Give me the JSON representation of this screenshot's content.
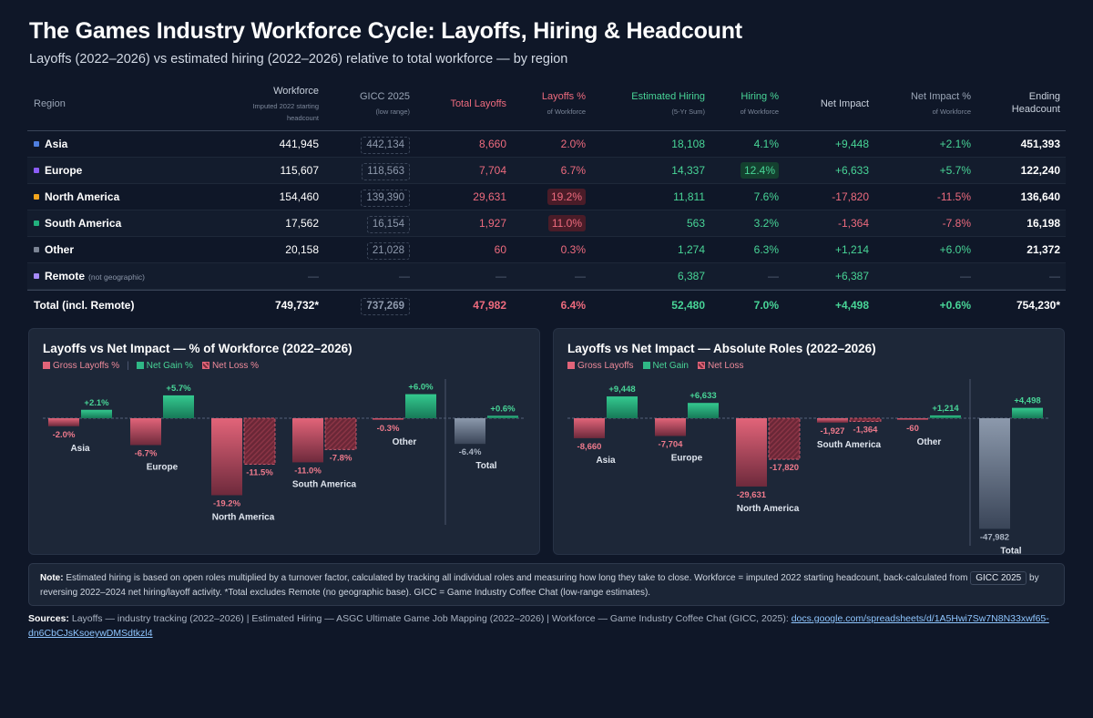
{
  "title": "The Games Industry Workforce Cycle: Layoffs, Hiring & Headcount",
  "subtitle": "Layoffs (2022–2026) vs estimated hiring (2022–2026) relative to total workforce — by region",
  "table": {
    "headers": {
      "region": "Region",
      "workforce": "Workforce",
      "workforce_sub": "Imputed 2022 starting headcount",
      "gicc": "GICC 2025",
      "gicc_sub": "(low range)",
      "layoffs": "Total Layoffs",
      "layoffs_pct": "Layoffs %",
      "layoffs_pct_sub": "of Workforce",
      "hiring": "Estimated Hiring",
      "hiring_sub": "(5-Yr Sum)",
      "hiring_pct": "Hiring %",
      "hiring_pct_sub": "of Workforce",
      "net": "Net Impact",
      "net_pct": "Net Impact %",
      "net_pct_sub": "of Workforce",
      "ending": "Ending Headcount"
    },
    "rows": [
      {
        "region": "Asia",
        "color": "#4f7fe0",
        "workforce": "441,945",
        "gicc": "442,134",
        "layoffs": "8,660",
        "layoffs_pct": "2.0%",
        "hiring": "18,108",
        "hiring_pct": "4.1%",
        "net": "+9,448",
        "net_pct": "+2.1%",
        "ending": "451,393"
      },
      {
        "region": "Europe",
        "color": "#8b5cf6",
        "workforce": "115,607",
        "gicc": "118,563",
        "layoffs": "7,704",
        "layoffs_pct": "6.7%",
        "hiring": "14,337",
        "hiring_pct": "12.4%",
        "net": "+6,633",
        "net_pct": "+5.7%",
        "ending": "122,240"
      },
      {
        "region": "North America",
        "color": "#f2a51d",
        "workforce": "154,460",
        "gicc": "139,390",
        "layoffs": "29,631",
        "layoffs_pct": "19.2%",
        "hiring": "11,811",
        "hiring_pct": "7.6%",
        "net": "-17,820",
        "net_pct": "-11.5%",
        "ending": "136,640"
      },
      {
        "region": "South America",
        "color": "#22b07d",
        "workforce": "17,562",
        "gicc": "16,154",
        "layoffs": "1,927",
        "layoffs_pct": "11.0%",
        "hiring": "563",
        "hiring_pct": "3.2%",
        "net": "-1,364",
        "net_pct": "-7.8%",
        "ending": "16,198"
      },
      {
        "region": "Other",
        "color": "#7b8494",
        "workforce": "20,158",
        "gicc": "21,028",
        "layoffs": "60",
        "layoffs_pct": "0.3%",
        "hiring": "1,274",
        "hiring_pct": "6.3%",
        "net": "+1,214",
        "net_pct": "+6.0%",
        "ending": "21,372"
      },
      {
        "region": "Remote",
        "note": "(not geographic)",
        "color": "#a78bfa",
        "workforce": "—",
        "gicc": "—",
        "layoffs": "—",
        "layoffs_pct": "—",
        "hiring": "6,387",
        "hiring_pct": "—",
        "net": "+6,387",
        "net_pct": "—",
        "ending": "—"
      }
    ],
    "total": {
      "region": "Total (incl. Remote)",
      "workforce": "749,732*",
      "gicc": "737,269",
      "layoffs": "47,982",
      "layoffs_pct": "6.4%",
      "hiring": "52,480",
      "hiring_pct": "7.0%",
      "net": "+4,498",
      "net_pct": "+0.6%",
      "ending": "754,230*"
    }
  },
  "colors": {
    "gross_layoffs": "#e26479",
    "net_gain": "#2fb886",
    "net_loss": "#b03a50",
    "total_bar": "#8c99ac"
  },
  "chart_data": [
    {
      "type": "bar",
      "title": "Layoffs vs Net Impact — % of Workforce (2022–2026)",
      "categories": [
        "Asia",
        "Europe",
        "North America",
        "South America",
        "Other",
        "Total"
      ],
      "series": [
        {
          "name": "Gross Layoffs %",
          "values": [
            -2.0,
            -6.7,
            -19.2,
            -11.0,
            -0.3,
            -6.4
          ],
          "labels": [
            "-2.0%",
            "-6.7%",
            "-19.2%",
            "-11.0%",
            "-0.3%",
            "-6.4%"
          ]
        },
        {
          "name": "Net Gain %",
          "values": [
            2.1,
            5.7,
            null,
            null,
            6.0,
            0.6
          ],
          "labels": [
            "+2.1%",
            "+5.7%",
            null,
            null,
            "+6.0%",
            "+0.6%"
          ]
        },
        {
          "name": "Net Loss %",
          "values": [
            null,
            null,
            -11.5,
            -7.8,
            null,
            null
          ],
          "labels": [
            null,
            null,
            "-11.5%",
            "-7.8%",
            null,
            null
          ]
        }
      ],
      "legend": "top-left"
    },
    {
      "type": "bar",
      "title": "Layoffs vs Net Impact — Absolute Roles (2022–2026)",
      "categories": [
        "Asia",
        "Europe",
        "North America",
        "South America",
        "Other",
        "Total"
      ],
      "series": [
        {
          "name": "Gross Layoffs",
          "values": [
            -8660,
            -7704,
            -29631,
            -1927,
            -60,
            -47982
          ],
          "labels": [
            "-8,660",
            "-7,704",
            "-29,631",
            "-1,927",
            "-60",
            "-47,982"
          ]
        },
        {
          "name": "Net Gain",
          "values": [
            9448,
            6633,
            null,
            null,
            1214,
            4498
          ],
          "labels": [
            "+9,448",
            "+6,633",
            null,
            null,
            "+1,214",
            "+4,498"
          ]
        },
        {
          "name": "Net Loss",
          "values": [
            null,
            null,
            -17820,
            -1364,
            null,
            null
          ],
          "labels": [
            null,
            null,
            "-17,820",
            "-1,364",
            null,
            null
          ]
        }
      ],
      "legend": "top-left"
    }
  ],
  "note": {
    "label": "Note:",
    "text1": "Estimated hiring is based on open roles multiplied by a turnover factor, calculated by tracking all individual roles and measuring how long they take to close. Workforce = imputed 2022 starting headcount, back-calculated from",
    "tag": "GICC 2025",
    "text2": "by reversing 2022–2024 net hiring/layoff activity. *Total excludes Remote (no geographic base). GICC = Game Industry Coffee Chat (low-range estimates)."
  },
  "sources": {
    "label": "Sources:",
    "text": "Layoffs — industry tracking (2022–2026) | Estimated Hiring — ASGC Ultimate Game Job Mapping (2022–2026) | Workforce — Game Industry Coffee Chat (GICC, 2025):",
    "link": "docs.google.com/spreadsheets/d/1A5Hwi7Sw7N8N33xwf65-dn6CbCJsKsoeywDMSdtkzl4"
  }
}
